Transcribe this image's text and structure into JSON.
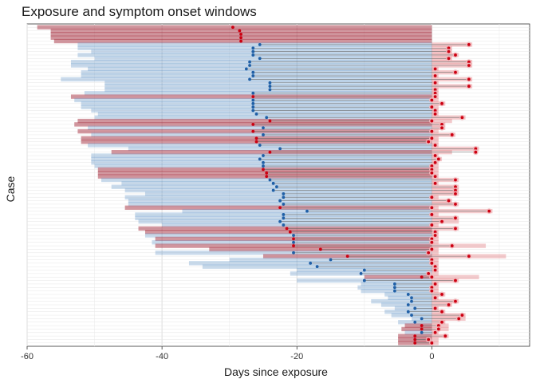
{
  "chart_data": {
    "type": "bar",
    "title": "Exposure and symptom onset windows",
    "xlabel": "Days since exposure",
    "ylabel": "Case",
    "xlim": [
      -60,
      14.5
    ],
    "x_ticks": [
      -60,
      -40,
      -20,
      0
    ],
    "x_tick_labels": [
      "-60",
      "-40",
      "-20",
      "0"
    ],
    "grid": true,
    "legend": "none",
    "colors": {
      "red_bar": "#a5303f",
      "blue_bar": "#5b8ec4",
      "red_point": "#cc0011",
      "blue_point": "#1f5fa6",
      "pink_bar": "#e4898f",
      "connector": "#555555"
    },
    "cases": [
      {
        "start": -58.5,
        "mid": -29.5,
        "end": null,
        "pstart": null,
        "pend": null,
        "grp": "red"
      },
      {
        "start": -56.5,
        "mid": -28.5,
        "end": null,
        "pstart": null,
        "pend": null,
        "grp": "red"
      },
      {
        "start": -56.5,
        "mid": -28.3,
        "end": null,
        "pstart": null,
        "pend": null,
        "grp": "red"
      },
      {
        "start": -56.5,
        "mid": -28.3,
        "end": null,
        "pstart": null,
        "pend": null,
        "grp": "red"
      },
      {
        "start": -56.0,
        "mid": -28.3,
        "end": null,
        "pstart": null,
        "pend": null,
        "grp": "red"
      },
      {
        "start": -52.5,
        "mid": -25.5,
        "end": 5.5,
        "pstart": 0,
        "pend": 6.0,
        "grp": "blue"
      },
      {
        "start": -52.5,
        "mid": -26.5,
        "end": 2.5,
        "pstart": 0,
        "pend": 3.0,
        "grp": "blue"
      },
      {
        "start": -50.5,
        "mid": -26.5,
        "end": 2.5,
        "pstart": 0,
        "pend": 3.0,
        "grp": "blue"
      },
      {
        "start": -52.5,
        "mid": -26.5,
        "end": 3.5,
        "pstart": 0,
        "pend": 4.0,
        "grp": "blue"
      },
      {
        "start": -50.0,
        "mid": -25.5,
        "end": 2.5,
        "pstart": 0,
        "pend": 3.0,
        "grp": "blue"
      },
      {
        "start": -53.5,
        "mid": -27.0,
        "end": 5.5,
        "pstart": 0,
        "pend": 6.0,
        "grp": "blue"
      },
      {
        "start": -53.5,
        "mid": -27.0,
        "end": 5.5,
        "pstart": 0,
        "pend": 6.0,
        "grp": "blue"
      },
      {
        "start": -51.0,
        "mid": -27.5,
        "end": 0.5,
        "pstart": 0,
        "pend": 1.0,
        "grp": "blue"
      },
      {
        "start": -52.0,
        "mid": -26.5,
        "end": 3.5,
        "pstart": 0,
        "pend": 4.0,
        "grp": "blue"
      },
      {
        "start": -52.0,
        "mid": -26.5,
        "end": 0.5,
        "pstart": 0,
        "pend": 1.0,
        "grp": "blue"
      },
      {
        "start": -55.0,
        "mid": -27.0,
        "end": 5.5,
        "pstart": 0,
        "pend": 6.0,
        "grp": "blue"
      },
      {
        "start": -48.5,
        "mid": -24.0,
        "end": 0.5,
        "pstart": 0,
        "pend": 1.0,
        "grp": "blue"
      },
      {
        "start": -48.5,
        "mid": -24.0,
        "end": 5.5,
        "pstart": 0,
        "pend": 6.0,
        "grp": "blue"
      },
      {
        "start": -48.5,
        "mid": -24.0,
        "end": 0.5,
        "pstart": 0,
        "pend": 1.0,
        "grp": "blue"
      },
      {
        "start": -51.5,
        "mid": -26.5,
        "end": 0.5,
        "pstart": 0,
        "pend": 1.0,
        "grp": "blue"
      },
      {
        "start": -53.5,
        "mid": -26.5,
        "end": 0.5,
        "pstart": 0,
        "pend": 1.0,
        "grp": "red"
      },
      {
        "start": -53.0,
        "mid": -26.5,
        "end": 0.0,
        "pstart": 0,
        "pend": 1.0,
        "grp": "blue"
      },
      {
        "start": -52.0,
        "mid": -26.5,
        "end": 1.5,
        "pstart": 0,
        "pend": 2.0,
        "grp": "blue"
      },
      {
        "start": -52.0,
        "mid": -26.5,
        "end": 0.0,
        "pstart": 0,
        "pend": 1.0,
        "grp": "blue"
      },
      {
        "start": -50.5,
        "mid": -26.5,
        "end": 0.5,
        "pstart": 0,
        "pend": 1.0,
        "grp": "blue"
      },
      {
        "start": -49.5,
        "mid": -26.0,
        "end": 0.5,
        "pstart": 0,
        "pend": 1.0,
        "grp": "blue"
      },
      {
        "start": -50.0,
        "mid": -24.5,
        "end": 4.5,
        "pstart": 0,
        "pend": 5.0,
        "grp": "blue"
      },
      {
        "start": -52.5,
        "mid": -24.0,
        "end": 0.0,
        "pstart": 0,
        "pend": 3.0,
        "grp": "red"
      },
      {
        "start": -53.0,
        "mid": -26.5,
        "end": 1.5,
        "pstart": 0,
        "pend": 2.0,
        "grp": "red"
      },
      {
        "start": -51.0,
        "mid": -25.0,
        "end": 1.5,
        "pstart": 0,
        "pend": 2.0,
        "grp": "blue"
      },
      {
        "start": -52.5,
        "mid": -26.5,
        "end": 0.0,
        "pstart": 0,
        "pend": 1.0,
        "grp": "red"
      },
      {
        "start": -50.5,
        "mid": -25.0,
        "end": 3.0,
        "pstart": 0,
        "pend": 3.5,
        "grp": "blue"
      },
      {
        "start": -52.0,
        "mid": -26.0,
        "end": 0.0,
        "pstart": 0,
        "pend": 1.0,
        "grp": "red"
      },
      {
        "start": -52.0,
        "mid": -26.0,
        "end": -0.5,
        "pstart": 0,
        "pend": 1.0,
        "grp": "red"
      },
      {
        "start": -51.0,
        "mid": -25.5,
        "end": 0.5,
        "pstart": 0,
        "pend": 1.0,
        "grp": "blue"
      },
      {
        "start": -45.0,
        "mid": -22.5,
        "end": 6.5,
        "pstart": 0,
        "pend": 7.0,
        "grp": "blue"
      },
      {
        "start": -47.5,
        "mid": -24.0,
        "end": 6.5,
        "pstart": 0,
        "pend": 3.0,
        "grp": "red"
      },
      {
        "start": -50.5,
        "mid": -25.0,
        "end": 0.5,
        "pstart": 0,
        "pend": 1.0,
        "grp": "blue"
      },
      {
        "start": -50.5,
        "mid": -25.5,
        "end": 1.0,
        "pstart": 0,
        "pend": 1.5,
        "grp": "blue"
      },
      {
        "start": -50.5,
        "mid": -25.0,
        "end": 0.5,
        "pstart": 0,
        "pend": 1.0,
        "grp": "blue"
      },
      {
        "start": -50.0,
        "mid": -25.0,
        "end": 0.0,
        "pstart": 0,
        "pend": 1.0,
        "grp": "blue"
      },
      {
        "start": -49.5,
        "mid": -25.0,
        "end": 0.0,
        "pstart": 0,
        "pend": 1.0,
        "grp": "red"
      },
      {
        "start": -49.5,
        "mid": -24.5,
        "end": 0.0,
        "pstart": 0,
        "pend": 1.0,
        "grp": "red"
      },
      {
        "start": -49.5,
        "mid": -24.5,
        "end": 0.5,
        "pstart": 0,
        "pend": 1.0,
        "grp": "red"
      },
      {
        "start": -49.0,
        "mid": -24.0,
        "end": 3.5,
        "pstart": 0,
        "pend": 4.0,
        "grp": "blue"
      },
      {
        "start": -46.0,
        "mid": -23.5,
        "end": 0.5,
        "pstart": 0,
        "pend": 1.0,
        "grp": "blue"
      },
      {
        "start": -47.5,
        "mid": -23.0,
        "end": 3.5,
        "pstart": 0,
        "pend": 4.0,
        "grp": "blue"
      },
      {
        "start": -45.5,
        "mid": -23.5,
        "end": 3.5,
        "pstart": 0,
        "pend": 4.0,
        "grp": "blue"
      },
      {
        "start": -42.5,
        "mid": -22.0,
        "end": 3.5,
        "pstart": 0,
        "pend": 4.0,
        "grp": "blue"
      },
      {
        "start": -45.5,
        "mid": -22.0,
        "end": 0.0,
        "pstart": 0,
        "pend": 1.0,
        "grp": "blue"
      },
      {
        "start": -45.0,
        "mid": -22.5,
        "end": 2.5,
        "pstart": 0,
        "pend": 3.0,
        "grp": "blue"
      },
      {
        "start": -45.0,
        "mid": -22.0,
        "end": 3.5,
        "pstart": 0,
        "pend": 4.0,
        "grp": "blue"
      },
      {
        "start": -45.5,
        "mid": -22.5,
        "end": 0.0,
        "pstart": 0,
        "pend": 1.0,
        "grp": "red"
      },
      {
        "start": -37.0,
        "mid": -18.5,
        "end": 8.5,
        "pstart": 0,
        "pend": 9.0,
        "grp": "blue"
      },
      {
        "start": -44.0,
        "mid": -22.0,
        "end": 0.0,
        "pstart": 0,
        "pend": 1.0,
        "grp": "blue"
      },
      {
        "start": -44.0,
        "mid": -22.0,
        "end": 3.5,
        "pstart": 0,
        "pend": 4.0,
        "grp": "blue"
      },
      {
        "start": -43.5,
        "mid": -22.5,
        "end": 1.5,
        "pstart": 0,
        "pend": 4.0,
        "grp": "blue"
      },
      {
        "start": -40.0,
        "mid": -22.0,
        "end": 0.0,
        "pstart": 0,
        "pend": 1.0,
        "grp": "blue"
      },
      {
        "start": -43.5,
        "mid": -21.5,
        "end": 3.5,
        "pstart": 0,
        "pend": 4.0,
        "grp": "red"
      },
      {
        "start": -42.5,
        "mid": -21.0,
        "end": 0.5,
        "pstart": 0,
        "pend": 1.0,
        "grp": "red"
      },
      {
        "start": -42.5,
        "mid": -20.5,
        "end": 0.5,
        "pstart": 0,
        "pend": 1.0,
        "grp": "blue"
      },
      {
        "start": -41.0,
        "mid": -20.5,
        "end": 0.0,
        "pstart": 0,
        "pend": 1.0,
        "grp": "red"
      },
      {
        "start": -41.5,
        "mid": -20.5,
        "end": 0.0,
        "pstart": 0,
        "pend": 1.0,
        "grp": "blue"
      },
      {
        "start": -41.0,
        "mid": -20.5,
        "end": 3.0,
        "pstart": 0,
        "pend": 8.0,
        "grp": "red"
      },
      {
        "start": -33.0,
        "mid": -16.5,
        "end": 0.0,
        "pstart": 0,
        "pend": 1.0,
        "grp": "red"
      },
      {
        "start": -41.0,
        "mid": -20.5,
        "end": -0.5,
        "pstart": 0,
        "pend": 1.0,
        "grp": "blue"
      },
      {
        "start": -25.0,
        "mid": -12.5,
        "end": 5.5,
        "pstart": 0,
        "pend": 11.0,
        "grp": "red"
      },
      {
        "start": -30.0,
        "mid": -15.0,
        "end": 0.0,
        "pstart": 0,
        "pend": 1.0,
        "grp": "blue"
      },
      {
        "start": -36.0,
        "mid": -18.0,
        "end": 0.0,
        "pstart": 0,
        "pend": 1.0,
        "grp": "blue"
      },
      {
        "start": -34.0,
        "mid": -17.0,
        "end": 0.5,
        "pstart": 0,
        "pend": 1.0,
        "grp": "blue"
      },
      {
        "start": -20.0,
        "mid": -10.0,
        "end": 0.5,
        "pstart": 0,
        "pend": 1.0,
        "grp": "blue"
      },
      {
        "start": -21.0,
        "mid": -10.5,
        "end": -0.5,
        "pstart": 0,
        "pend": 1.0,
        "grp": "blue"
      },
      {
        "start": -10.0,
        "mid": -1.5,
        "end": 0.0,
        "pstart": 0,
        "pend": 7.0,
        "grp": "red"
      },
      {
        "start": -20.0,
        "mid": -10.0,
        "end": 3.5,
        "pstart": 0,
        "pend": 4.0,
        "grp": "blue"
      },
      {
        "start": -10.5,
        "mid": -5.5,
        "end": 0.5,
        "pstart": 0,
        "pend": 1.0,
        "grp": "blue"
      },
      {
        "start": -11.0,
        "mid": -5.5,
        "end": 0.0,
        "pstart": 0,
        "pend": 1.0,
        "grp": "blue"
      },
      {
        "start": -10.5,
        "mid": -5.5,
        "end": 0.0,
        "pstart": 0,
        "pend": 1.0,
        "grp": "blue"
      },
      {
        "start": -7.0,
        "mid": -3.5,
        "end": 1.5,
        "pstart": 0,
        "pend": 2.0,
        "grp": "blue"
      },
      {
        "start": -6.5,
        "mid": -3.0,
        "end": 0.5,
        "pstart": 0,
        "pend": 1.0,
        "grp": "blue"
      },
      {
        "start": -9.0,
        "mid": -3.0,
        "end": 3.5,
        "pstart": 0,
        "pend": 4.0,
        "grp": "blue"
      },
      {
        "start": -7.5,
        "mid": -3.5,
        "end": 2.5,
        "pstart": 0,
        "pend": 3.0,
        "grp": "blue"
      },
      {
        "start": -5.5,
        "mid": -2.5,
        "end": 0.5,
        "pstart": 0,
        "pend": 1.0,
        "grp": "blue"
      },
      {
        "start": -7.0,
        "mid": -3.5,
        "end": 1.5,
        "pstart": 0,
        "pend": 2.0,
        "grp": "blue"
      },
      {
        "start": -6.0,
        "mid": -3.0,
        "end": 4.5,
        "pstart": 0,
        "pend": 5.0,
        "grp": "blue"
      },
      {
        "start": -3.0,
        "mid": -1.5,
        "end": 4.0,
        "pstart": 0,
        "pend": 5.0,
        "grp": "blue"
      },
      {
        "start": -5.0,
        "mid": -2.5,
        "end": 1.5,
        "pstart": 0,
        "pend": 2.0,
        "grp": "blue"
      },
      {
        "start": -4.0,
        "mid": -1.5,
        "end": 1.0,
        "pstart": 0,
        "pend": 2.5,
        "grp": "red"
      },
      {
        "start": -4.5,
        "mid": -1.5,
        "end": 1.0,
        "pstart": 0,
        "pend": 2.5,
        "grp": "red"
      },
      {
        "start": -4.0,
        "mid": -1.5,
        "end": 0.5,
        "pstart": 0,
        "pend": 1.0,
        "grp": "blue"
      },
      {
        "start": -5.0,
        "mid": -2.5,
        "end": 2.0,
        "pstart": 0,
        "pend": 2.5,
        "grp": "red"
      },
      {
        "start": -5.0,
        "mid": -2.5,
        "end": -0.5,
        "pstart": 0,
        "pend": 1.0,
        "grp": "red"
      },
      {
        "start": -5.0,
        "mid": -2.5,
        "end": 0.0,
        "pstart": 0,
        "pend": 1.0,
        "grp": "red"
      }
    ]
  }
}
